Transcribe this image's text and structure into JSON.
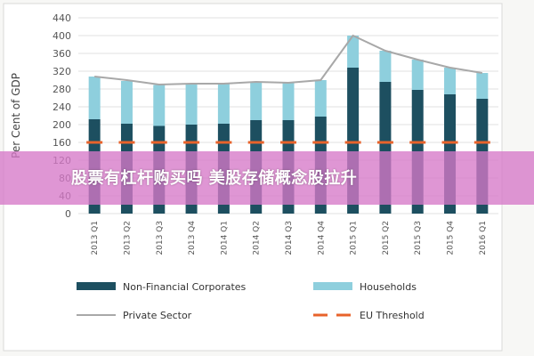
{
  "colors": {
    "non_financial": "#1d4f60",
    "households": "#8ecfdd",
    "private_sector": "#a8a8a8",
    "eu_threshold": "#e8632b",
    "banner": "#d678c8"
  },
  "chart_data": {
    "type": "bar",
    "stacked": true,
    "categories": [
      "2013 Q1",
      "2013 Q2",
      "2013 Q3",
      "2013 Q4",
      "2014 Q1",
      "2014 Q2",
      "2014 Q3",
      "2014 Q4",
      "2015 Q1",
      "2015 Q2",
      "2015 Q3",
      "2015 Q4",
      "2016 Q1"
    ],
    "series": [
      {
        "name": "Non-Financial Corporates",
        "kind": "bar",
        "values": [
          212,
          202,
          197,
          200,
          202,
          210,
          210,
          218,
          328,
          296,
          278,
          268,
          258
        ]
      },
      {
        "name": "Households",
        "kind": "bar",
        "values": [
          96,
          96,
          92,
          92,
          90,
          86,
          84,
          82,
          72,
          70,
          68,
          60,
          58
        ]
      },
      {
        "name": "Private Sector",
        "kind": "line",
        "values": [
          308,
          300,
          290,
          292,
          292,
          296,
          294,
          300,
          400,
          366,
          346,
          328,
          316
        ]
      },
      {
        "name": "EU Threshold",
        "kind": "dashed-line",
        "values": [
          160,
          160,
          160,
          160,
          160,
          160,
          160,
          160,
          160,
          160,
          160,
          160,
          160
        ]
      }
    ],
    "title": "",
    "xlabel": "",
    "ylabel": "Per Cent of GDP",
    "ylim": [
      0,
      440
    ],
    "yticks": [
      0,
      40,
      80,
      120,
      160,
      200,
      240,
      280,
      320,
      360,
      400,
      440
    ],
    "grid": true,
    "legend": "bottom"
  },
  "overlay": {
    "banner_text": "股票有杠杆购买吗 美股存储概念股拉升"
  }
}
